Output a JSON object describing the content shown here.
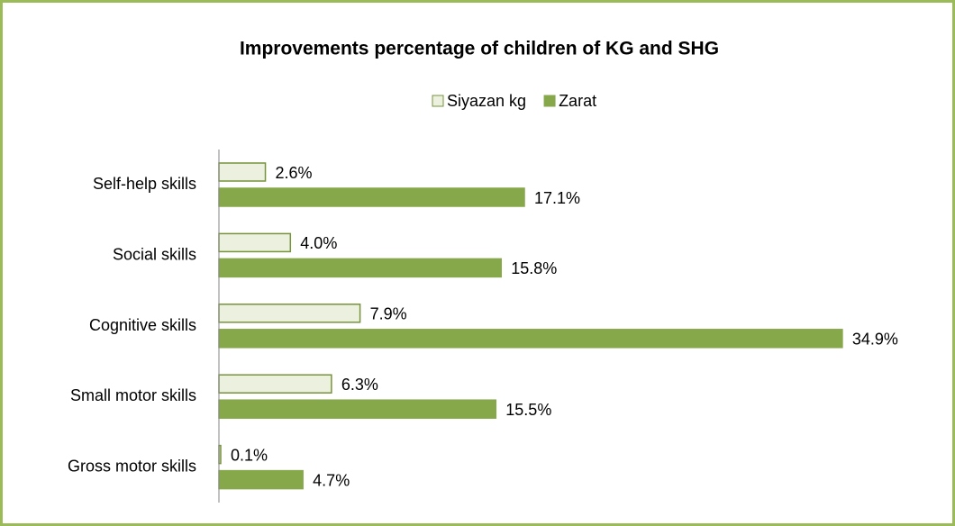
{
  "chart_data": {
    "type": "hbar",
    "title": "Improvements percentage of children of KG and SHG",
    "categories": [
      "Self-help skills",
      "Social skills",
      "Cognitive skills",
      "Small motor skills",
      "Gross motor skills"
    ],
    "series": [
      {
        "name": "Siyazan kg",
        "color": "#ebf1de",
        "values": [
          2.6,
          4.0,
          7.9,
          6.3,
          0.1
        ],
        "value_labels": [
          "2.6%",
          "4.0%",
          "7.9%",
          "6.3%",
          "0.1%"
        ]
      },
      {
        "name": "Zarat",
        "color": "#86a84a",
        "values": [
          17.1,
          15.8,
          34.9,
          15.5,
          4.7
        ],
        "value_labels": [
          "17.1%",
          "15.8%",
          "34.9%",
          "15.5%",
          "4.7%"
        ]
      }
    ],
    "xlim": [
      0,
      40
    ],
    "legend": "top"
  }
}
